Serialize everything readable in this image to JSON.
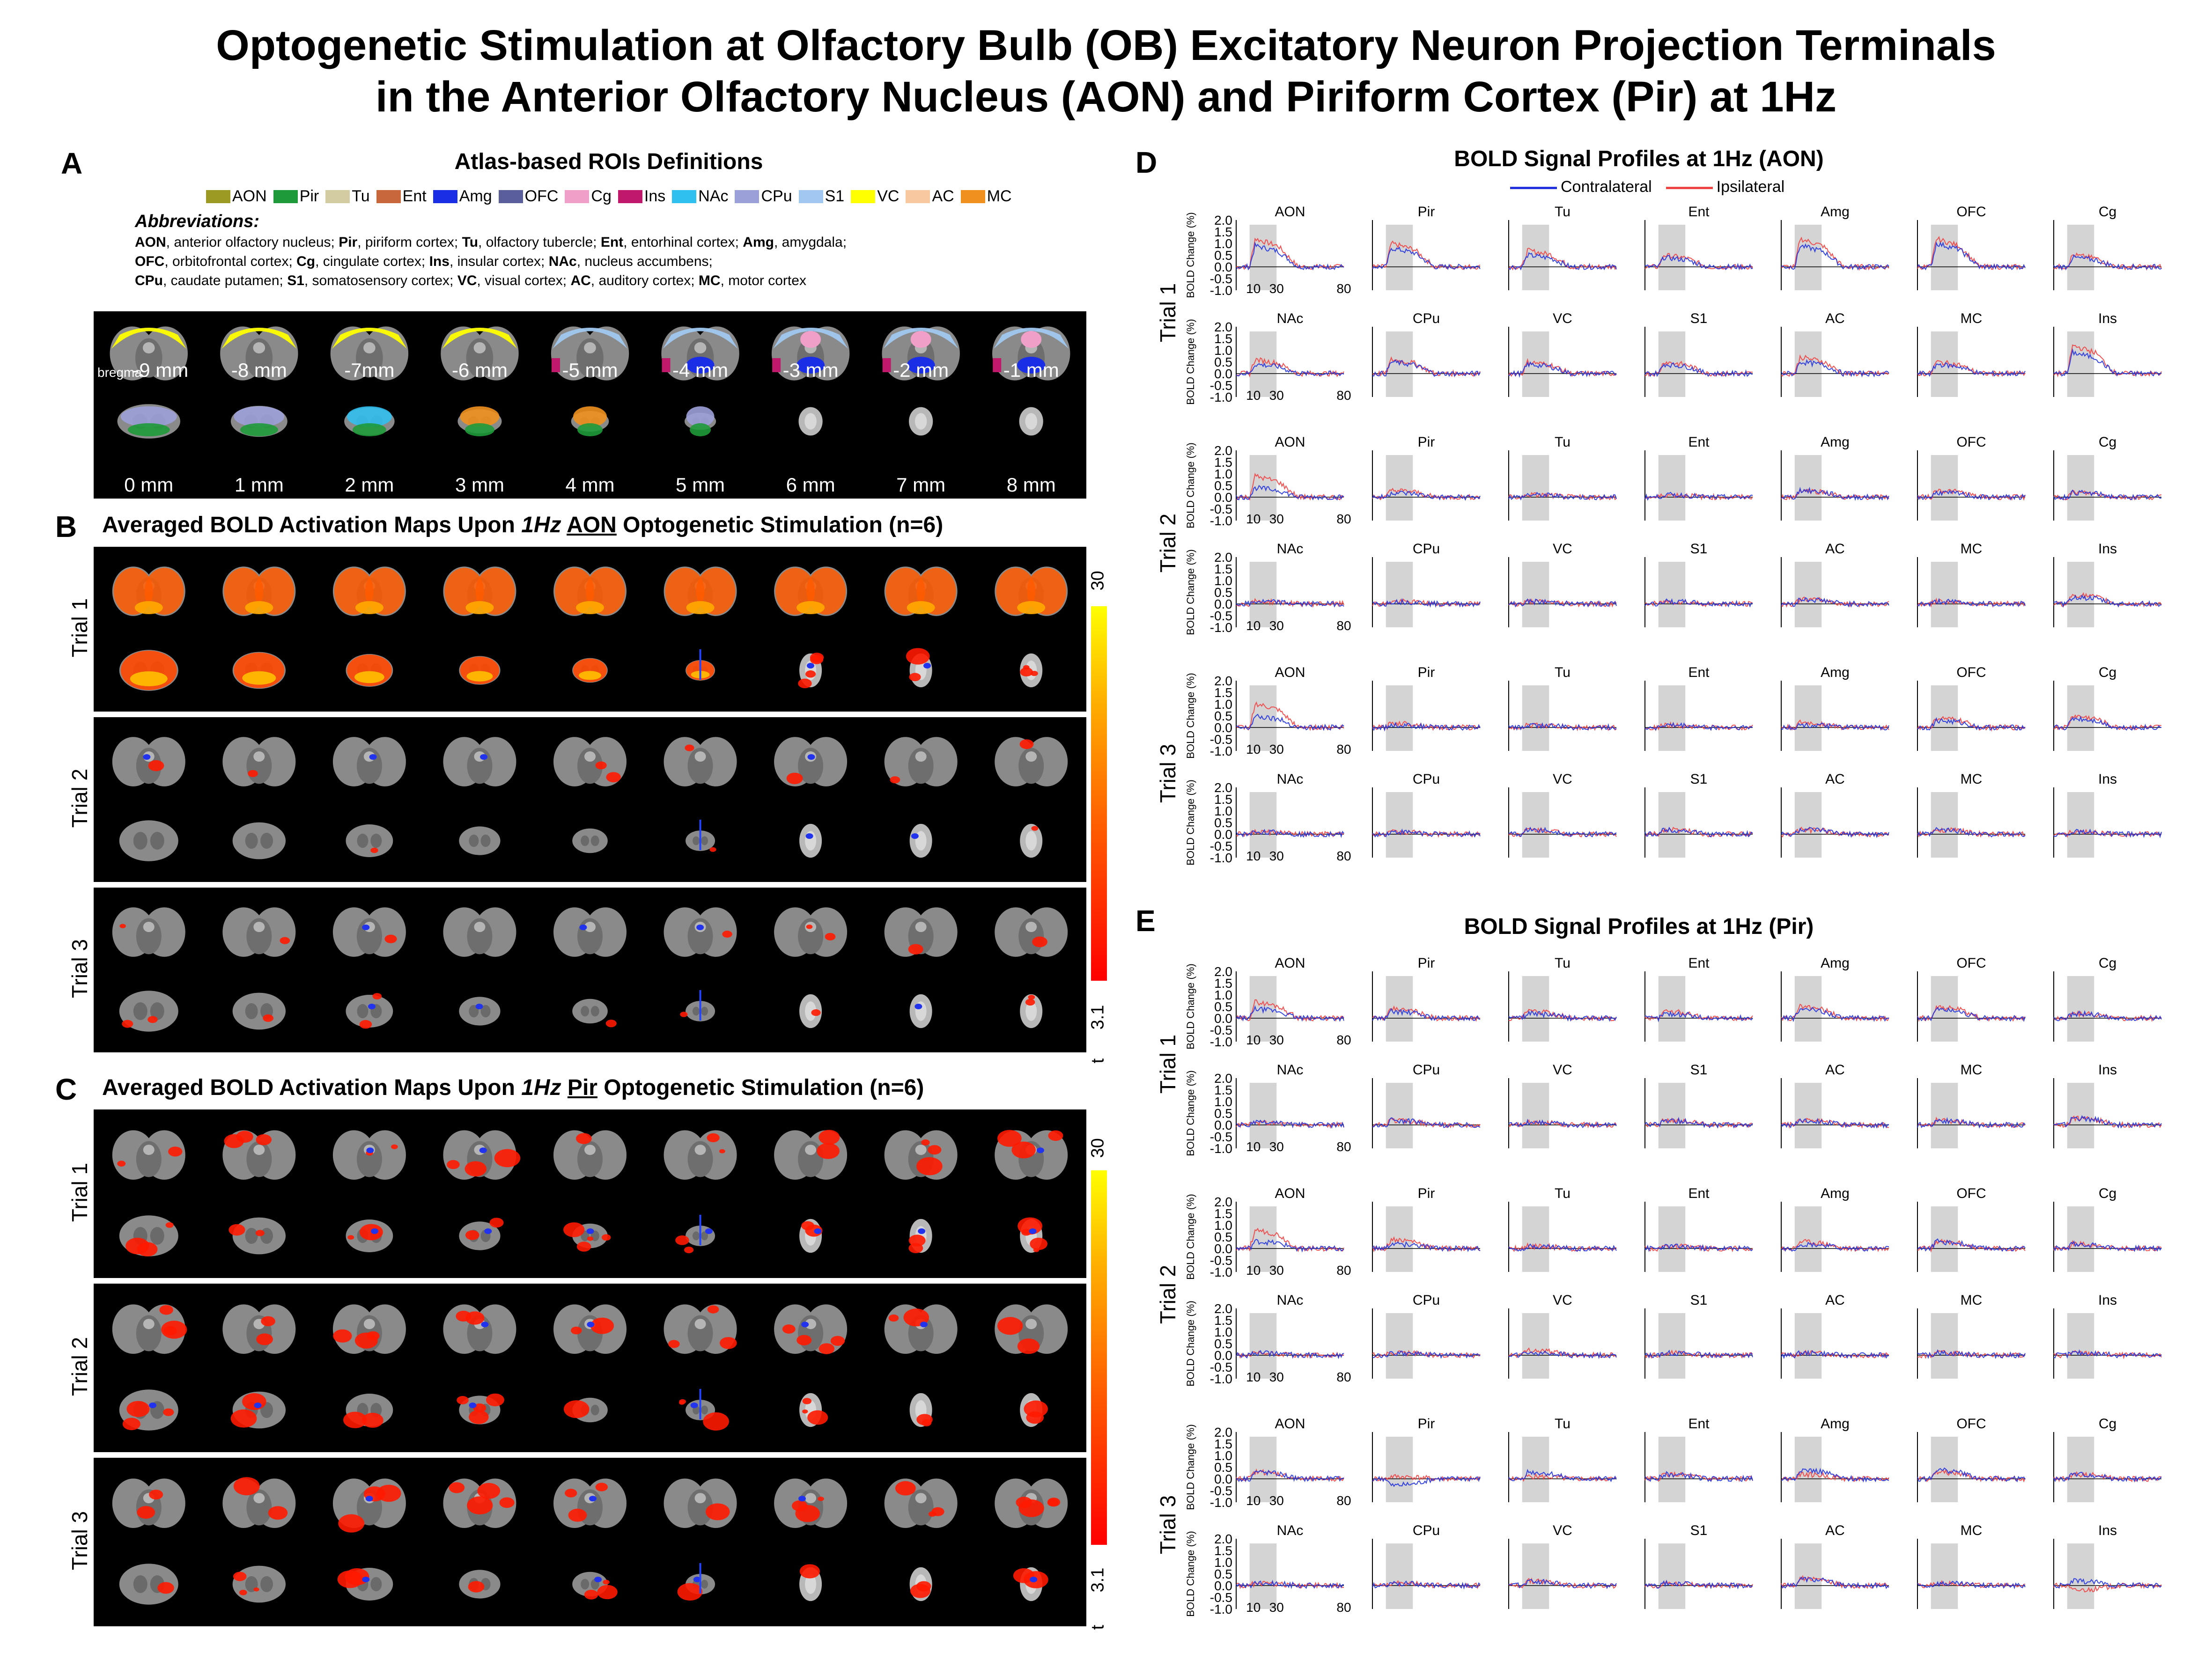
{
  "title": {
    "line1": "Optogenetic Stimulation at Olfactory Bulb (OB) Excitatory Neuron Projection Terminals",
    "line2": "in the Anterior Olfactory Nucleus (AON) and Piriform Cortex (Pir) at 1Hz"
  },
  "panelA": {
    "label": "A",
    "title": "Atlas-based ROIs Definitions",
    "legend": [
      {
        "name": "AON",
        "color": "#9d9a23"
      },
      {
        "name": "Pir",
        "color": "#1e9a3a"
      },
      {
        "name": "Tu",
        "color": "#d2cca0"
      },
      {
        "name": "Ent",
        "color": "#c8663c"
      },
      {
        "name": "Amg",
        "color": "#1a2ee6"
      },
      {
        "name": "OFC",
        "color": "#5a5e9a"
      },
      {
        "name": "Cg",
        "color": "#f0a0c8"
      },
      {
        "name": "Ins",
        "color": "#c0186a"
      },
      {
        "name": "NAc",
        "color": "#30c0f0"
      },
      {
        "name": "CPu",
        "color": "#9ca0d8"
      },
      {
        "name": "S1",
        "color": "#a0c8f0"
      },
      {
        "name": "VC",
        "color": "#ffff00"
      },
      {
        "name": "AC",
        "color": "#f8c8a0"
      },
      {
        "name": "MC",
        "color": "#f0901e"
      }
    ],
    "abbr_heading": "Abbreviations:",
    "abbr_lines": [
      [
        [
          "AON",
          true
        ],
        [
          ", anterior olfactory nucleus; ",
          false
        ],
        [
          "Pir",
          true
        ],
        [
          ", piriform cortex; ",
          false
        ],
        [
          "Tu",
          true
        ],
        [
          ", olfactory tubercle; ",
          false
        ],
        [
          "Ent",
          true
        ],
        [
          ", entorhinal cortex; ",
          false
        ],
        [
          "Amg",
          true
        ],
        [
          ", amygdala;",
          false
        ]
      ],
      [
        [
          "OFC",
          true
        ],
        [
          ", orbitofrontal cortex; ",
          false
        ],
        [
          "Cg",
          true
        ],
        [
          ", cingulate cortex; ",
          false
        ],
        [
          "Ins",
          true
        ],
        [
          ", insular cortex; ",
          false
        ],
        [
          "NAc",
          true
        ],
        [
          ", nucleus accumbens;",
          false
        ]
      ],
      [
        [
          "CPu",
          true
        ],
        [
          ", caudate putamen; ",
          false
        ],
        [
          "S1",
          true
        ],
        [
          ", somatosensory cortex; ",
          false
        ],
        [
          "VC",
          true
        ],
        [
          ", visual cortex; ",
          false
        ],
        [
          "AC",
          true
        ],
        [
          ", auditory cortex; ",
          false
        ],
        [
          "MC",
          true
        ],
        [
          ", motor cortex",
          false
        ]
      ]
    ],
    "bregma_label": "bregma",
    "row1_labels": [
      "-9 mm",
      "-8 mm",
      "-7mm",
      "-6 mm",
      "-5 mm",
      "-4 mm",
      "-3 mm",
      "-2 mm",
      "-1 mm"
    ],
    "row2_labels": [
      "0 mm",
      "1 mm",
      "2 mm",
      "3 mm",
      "4 mm",
      "5 mm",
      "6 mm",
      "7 mm",
      "8 mm"
    ]
  },
  "panelB": {
    "label": "B",
    "title_pre": "Averaged BOLD Activation Maps Upon ",
    "title_freq": "1Hz",
    "title_target": "AON",
    "title_post": " Optogenetic Stimulation (n=6)",
    "trials": [
      "Trial 1",
      "Trial 2",
      "Trial 3"
    ],
    "cbar_max": "30",
    "cbar_min": "3.1",
    "cbar_t": "t"
  },
  "panelC": {
    "label": "C",
    "title_pre": "Averaged BOLD Activation Maps Upon ",
    "title_freq": "1Hz",
    "title_target": "Pir",
    "title_post": " Optogenetic Stimulation (n=6)",
    "trials": [
      "Trial 1",
      "Trial 2",
      "Trial 3"
    ],
    "cbar_max": "30",
    "cbar_min": "3.1",
    "cbar_t": "t"
  },
  "panelD": {
    "label": "D",
    "title": "BOLD Signal Profiles at 1Hz (AON)",
    "legend": [
      {
        "name": "Contralateral",
        "color": "#2233dd"
      },
      {
        "name": "Ipsilateral",
        "color": "#ee4444"
      }
    ],
    "trials": [
      "Trial 1",
      "Trial 2",
      "Trial 3"
    ]
  },
  "panelE": {
    "label": "E",
    "title": "BOLD Signal Profiles at 1Hz (Pir)",
    "trials": [
      "Trial 1",
      "Trial 2",
      "Trial 3"
    ]
  },
  "profiles": {
    "row1_regions": [
      "AON",
      "Pir",
      "Tu",
      "Ent",
      "Amg",
      "OFC",
      "Cg"
    ],
    "row2_regions": [
      "NAc",
      "CPu",
      "VC",
      "S1",
      "AC",
      "MC",
      "Ins"
    ],
    "ylabel": "BOLD Change (%)",
    "yticks": [
      "2.0",
      "1.5",
      "1.0",
      "0.5",
      "0.0",
      "-0.5",
      "-1.0"
    ],
    "xticks": [
      "10",
      "30",
      "80"
    ],
    "stim_window": [
      10,
      30
    ],
    "x_range": [
      0,
      80
    ],
    "y_range": [
      -1.0,
      2.0
    ]
  },
  "chart_data": [
    {
      "type": "line",
      "title": "BOLD Signal Profiles at 1Hz (AON)",
      "ylabel": "BOLD Change (%)",
      "xlim": [
        0,
        80
      ],
      "ylim": [
        -1.0,
        2.0
      ],
      "series": [
        {
          "name": "Contralateral"
        },
        {
          "name": "Ipsilateral"
        }
      ],
      "approx_peak_amplitude_percent": {
        "Trial 1": {
          "AON": [
            0.9,
            1.2
          ],
          "Pir": [
            0.8,
            1.0
          ],
          "Tu": [
            0.5,
            0.7
          ],
          "Ent": [
            0.4,
            0.5
          ],
          "Amg": [
            0.9,
            1.2
          ],
          "OFC": [
            1.0,
            1.2
          ],
          "Cg": [
            0.4,
            0.5
          ],
          "NAc": [
            0.4,
            0.6
          ],
          "CPu": [
            0.5,
            0.6
          ],
          "VC": [
            0.4,
            0.5
          ],
          "S1": [
            0.4,
            0.5
          ],
          "AC": [
            0.5,
            0.7
          ],
          "MC": [
            0.4,
            0.5
          ],
          "Ins": [
            0.9,
            1.2
          ]
        },
        "Trial 2": {
          "AON": [
            0.4,
            0.9
          ],
          "Pir": [
            0.2,
            0.3
          ],
          "Tu": [
            0.1,
            0.1
          ],
          "Ent": [
            0.1,
            0.1
          ],
          "Amg": [
            0.3,
            0.3
          ],
          "OFC": [
            0.2,
            0.3
          ],
          "Cg": [
            0.2,
            0.2
          ],
          "NAc": [
            0.1,
            0.1
          ],
          "CPu": [
            0.1,
            0.1
          ],
          "VC": [
            0.1,
            0.1
          ],
          "S1": [
            0.1,
            0.1
          ],
          "AC": [
            0.2,
            0.2
          ],
          "MC": [
            0.1,
            0.1
          ],
          "Ins": [
            0.3,
            0.4
          ]
        },
        "Trial 3": {
          "AON": [
            0.5,
            1.0
          ],
          "Pir": [
            0.1,
            0.2
          ],
          "Tu": [
            0.1,
            0.1
          ],
          "Ent": [
            0.1,
            0.1
          ],
          "Amg": [
            0.1,
            0.2
          ],
          "OFC": [
            0.3,
            0.4
          ],
          "Cg": [
            0.4,
            0.5
          ],
          "NAc": [
            0.1,
            0.1
          ],
          "CPu": [
            0.1,
            0.1
          ],
          "VC": [
            0.2,
            0.2
          ],
          "S1": [
            0.2,
            0.2
          ],
          "AC": [
            0.2,
            0.2
          ],
          "MC": [
            0.2,
            0.2
          ],
          "Ins": [
            0.1,
            0.1
          ]
        }
      }
    },
    {
      "type": "line",
      "title": "BOLD Signal Profiles at 1Hz (Pir)",
      "ylabel": "BOLD Change (%)",
      "xlim": [
        0,
        80
      ],
      "ylim": [
        -1.0,
        2.0
      ],
      "series": [
        {
          "name": "Contralateral"
        },
        {
          "name": "Ipsilateral"
        }
      ],
      "approx_peak_amplitude_percent": {
        "Trial 1": {
          "AON": [
            0.4,
            0.7
          ],
          "Pir": [
            0.3,
            0.4
          ],
          "Tu": [
            0.2,
            0.3
          ],
          "Ent": [
            0.2,
            0.3
          ],
          "Amg": [
            0.4,
            0.5
          ],
          "OFC": [
            0.4,
            0.5
          ],
          "Cg": [
            0.2,
            0.2
          ],
          "NAc": [
            0.1,
            0.1
          ],
          "CPu": [
            0.2,
            0.2
          ],
          "VC": [
            0.1,
            0.1
          ],
          "S1": [
            0.2,
            0.2
          ],
          "AC": [
            0.2,
            0.2
          ],
          "MC": [
            0.2,
            0.2
          ],
          "Ins": [
            0.3,
            0.3
          ]
        },
        "Trial 2": {
          "AON": [
            0.3,
            0.8
          ],
          "Pir": [
            0.2,
            0.4
          ],
          "Tu": [
            0.1,
            0.1
          ],
          "Ent": [
            0.1,
            0.1
          ],
          "Amg": [
            0.2,
            0.3
          ],
          "OFC": [
            0.3,
            0.3
          ],
          "Cg": [
            0.2,
            0.2
          ],
          "NAc": [
            0.1,
            0.1
          ],
          "CPu": [
            0.1,
            0.1
          ],
          "VC": [
            0.1,
            0.2
          ],
          "S1": [
            0.1,
            0.1
          ],
          "AC": [
            0.1,
            0.1
          ],
          "MC": [
            0.1,
            0.1
          ],
          "Ins": [
            0.1,
            0.1
          ]
        },
        "Trial 3": {
          "AON": [
            0.3,
            0.3
          ],
          "Pir": [
            -0.3,
            0.1
          ],
          "Tu": [
            0.3,
            0.1
          ],
          "Ent": [
            0.2,
            0.2
          ],
          "Amg": [
            0.4,
            0.2
          ],
          "OFC": [
            0.4,
            0.3
          ],
          "Cg": [
            0.2,
            0.2
          ],
          "NAc": [
            0.1,
            0.1
          ],
          "CPu": [
            0.1,
            0.1
          ],
          "VC": [
            0.2,
            0.2
          ],
          "S1": [
            0.1,
            0.1
          ],
          "AC": [
            0.3,
            0.3
          ],
          "MC": [
            0.1,
            0.1
          ],
          "Ins": [
            0.2,
            -0.2
          ]
        }
      }
    }
  ]
}
